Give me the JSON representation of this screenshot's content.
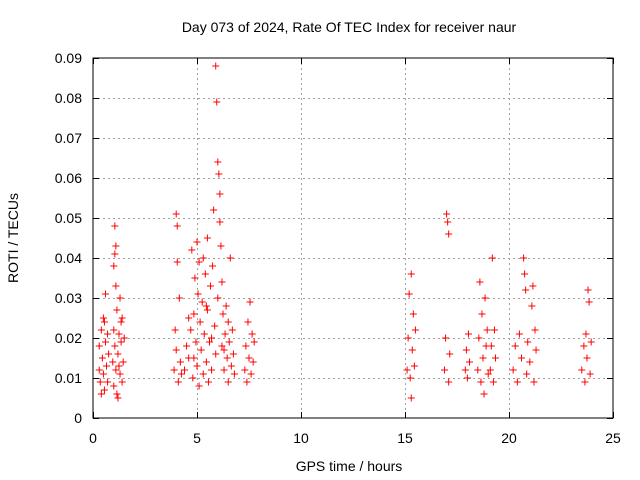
{
  "chart_data": {
    "type": "scatter",
    "title": "Day 073 of 2024, Rate Of TEC Index for receiver naur",
    "xlabel": "GPS time / hours",
    "ylabel": "ROTI / TECUs",
    "xlim": [
      0,
      25
    ],
    "ylim": [
      0,
      0.09
    ],
    "x_ticks": [
      0,
      5,
      10,
      15,
      20,
      25
    ],
    "x_tick_labels": [
      "0",
      "5",
      "10",
      "15",
      "20",
      "25"
    ],
    "y_ticks": [
      0,
      0.01,
      0.02,
      0.03,
      0.04,
      0.05,
      0.06,
      0.07,
      0.08,
      0.09
    ],
    "y_tick_labels": [
      "0",
      "0.01",
      "0.02",
      "0.03",
      "0.04",
      "0.05",
      "0.06",
      "0.07",
      "0.08",
      "0.09"
    ],
    "grid": true,
    "marker": "plus",
    "color": "#ff0000",
    "series": [
      {
        "points": [
          [
            0.3,
            0.012
          ],
          [
            0.3,
            0.018
          ],
          [
            0.35,
            0.009
          ],
          [
            0.4,
            0.022
          ],
          [
            0.45,
            0.015
          ],
          [
            0.5,
            0.011
          ],
          [
            0.5,
            0.025
          ],
          [
            0.55,
            0.007
          ],
          [
            0.6,
            0.019
          ],
          [
            0.65,
            0.013
          ],
          [
            0.7,
            0.021
          ],
          [
            0.7,
            0.009
          ],
          [
            0.75,
            0.016
          ],
          [
            0.4,
            0.006
          ],
          [
            0.6,
            0.031
          ],
          [
            0.55,
            0.024
          ],
          [
            0.95,
            0.014
          ],
          [
            1.0,
            0.022
          ],
          [
            1.0,
            0.008
          ],
          [
            1.05,
            0.018
          ],
          [
            1.05,
            0.048
          ],
          [
            1.1,
            0.033
          ],
          [
            1.1,
            0.012
          ],
          [
            1.15,
            0.027
          ],
          [
            1.2,
            0.016
          ],
          [
            1.2,
            0.005
          ],
          [
            1.25,
            0.021
          ],
          [
            1.3,
            0.011
          ],
          [
            1.3,
            0.03
          ],
          [
            1.35,
            0.019
          ],
          [
            1.4,
            0.009
          ],
          [
            1.4,
            0.025
          ],
          [
            1.45,
            0.014
          ],
          [
            1.5,
            0.02
          ],
          [
            1.0,
            0.038
          ],
          [
            1.05,
            0.041
          ],
          [
            1.1,
            0.043
          ],
          [
            1.15,
            0.006
          ],
          [
            1.25,
            0.013
          ],
          [
            1.35,
            0.024
          ],
          [
            3.9,
            0.012
          ],
          [
            3.95,
            0.022
          ],
          [
            4.0,
            0.051
          ],
          [
            4.0,
            0.017
          ],
          [
            4.05,
            0.048
          ],
          [
            4.1,
            0.009
          ],
          [
            4.15,
            0.03
          ],
          [
            4.2,
            0.014
          ],
          [
            4.05,
            0.039
          ],
          [
            4.25,
            0.011
          ],
          [
            4.4,
            0.012
          ],
          [
            4.5,
            0.018
          ],
          [
            4.6,
            0.015
          ],
          [
            4.7,
            0.022
          ],
          [
            4.75,
            0.042
          ],
          [
            4.8,
            0.01
          ],
          [
            4.85,
            0.026
          ],
          [
            4.9,
            0.035
          ],
          [
            4.95,
            0.019
          ],
          [
            5.0,
            0.044
          ],
          [
            5.0,
            0.013
          ],
          [
            5.05,
            0.031
          ],
          [
            5.1,
            0.039
          ],
          [
            5.1,
            0.008
          ],
          [
            5.15,
            0.024
          ],
          [
            5.2,
            0.017
          ],
          [
            5.25,
            0.029
          ],
          [
            5.3,
            0.011
          ],
          [
            5.35,
            0.021
          ],
          [
            5.4,
            0.036
          ],
          [
            5.45,
            0.014
          ],
          [
            5.5,
            0.045
          ],
          [
            5.5,
            0.027
          ],
          [
            5.55,
            0.009
          ],
          [
            5.6,
            0.019
          ],
          [
            5.65,
            0.033
          ],
          [
            5.7,
            0.012
          ],
          [
            5.75,
            0.038
          ],
          [
            5.8,
            0.052
          ],
          [
            5.85,
            0.023
          ],
          [
            5.9,
            0.016
          ],
          [
            5.9,
            0.088
          ],
          [
            5.95,
            0.079
          ],
          [
            6.0,
            0.064
          ],
          [
            6.05,
            0.061
          ],
          [
            6.1,
            0.056
          ],
          [
            6.1,
            0.049
          ],
          [
            6.15,
            0.043
          ],
          [
            6.2,
            0.034
          ],
          [
            6.2,
            0.018
          ],
          [
            6.25,
            0.026
          ],
          [
            6.3,
            0.012
          ],
          [
            6.35,
            0.021
          ],
          [
            6.4,
            0.028
          ],
          [
            6.45,
            0.015
          ],
          [
            6.5,
            0.009
          ],
          [
            6.55,
            0.019
          ],
          [
            6.6,
            0.04
          ],
          [
            6.65,
            0.013
          ],
          [
            6.7,
            0.022
          ],
          [
            6.75,
            0.016
          ],
          [
            6.8,
            0.011
          ],
          [
            4.6,
            0.025
          ],
          [
            4.85,
            0.015
          ],
          [
            5.3,
            0.04
          ],
          [
            5.45,
            0.028
          ],
          [
            5.7,
            0.02
          ],
          [
            6.0,
            0.03
          ],
          [
            6.3,
            0.017
          ],
          [
            6.5,
            0.024
          ],
          [
            7.3,
            0.012
          ],
          [
            7.35,
            0.018
          ],
          [
            7.4,
            0.009
          ],
          [
            7.45,
            0.024
          ],
          [
            7.5,
            0.015
          ],
          [
            7.55,
            0.029
          ],
          [
            7.6,
            0.011
          ],
          [
            7.65,
            0.021
          ],
          [
            7.7,
            0.014
          ],
          [
            7.75,
            0.019
          ],
          [
            15.1,
            0.012
          ],
          [
            15.15,
            0.02
          ],
          [
            15.2,
            0.031
          ],
          [
            15.25,
            0.01
          ],
          [
            15.3,
            0.036
          ],
          [
            15.3,
            0.005
          ],
          [
            15.35,
            0.017
          ],
          [
            15.4,
            0.026
          ],
          [
            15.45,
            0.013
          ],
          [
            15.5,
            0.022
          ],
          [
            16.9,
            0.012
          ],
          [
            16.95,
            0.02
          ],
          [
            17.0,
            0.051
          ],
          [
            17.05,
            0.049
          ],
          [
            17.1,
            0.046
          ],
          [
            17.1,
            0.009
          ],
          [
            17.15,
            0.016
          ],
          [
            17.9,
            0.012
          ],
          [
            17.95,
            0.017
          ],
          [
            18.0,
            0.01
          ],
          [
            18.05,
            0.021
          ],
          [
            18.1,
            0.014
          ],
          [
            18.5,
            0.012
          ],
          [
            18.55,
            0.02
          ],
          [
            18.6,
            0.034
          ],
          [
            18.65,
            0.009
          ],
          [
            18.7,
            0.026
          ],
          [
            18.75,
            0.015
          ],
          [
            18.8,
            0.006
          ],
          [
            18.85,
            0.03
          ],
          [
            18.9,
            0.018
          ],
          [
            18.95,
            0.022
          ],
          [
            19.0,
            0.011
          ],
          [
            19.1,
            0.012
          ],
          [
            19.15,
            0.018
          ],
          [
            19.2,
            0.04
          ],
          [
            19.25,
            0.009
          ],
          [
            19.3,
            0.022
          ],
          [
            19.35,
            0.015
          ],
          [
            20.2,
            0.012
          ],
          [
            20.3,
            0.018
          ],
          [
            20.4,
            0.009
          ],
          [
            20.5,
            0.021
          ],
          [
            20.6,
            0.015
          ],
          [
            20.7,
            0.04
          ],
          [
            20.75,
            0.036
          ],
          [
            20.8,
            0.032
          ],
          [
            20.85,
            0.011
          ],
          [
            20.9,
            0.019
          ],
          [
            21.0,
            0.014
          ],
          [
            21.1,
            0.028
          ],
          [
            21.15,
            0.033
          ],
          [
            21.2,
            0.009
          ],
          [
            21.25,
            0.022
          ],
          [
            21.3,
            0.017
          ],
          [
            23.5,
            0.012
          ],
          [
            23.6,
            0.018
          ],
          [
            23.65,
            0.009
          ],
          [
            23.7,
            0.021
          ],
          [
            23.75,
            0.015
          ],
          [
            23.8,
            0.032
          ],
          [
            23.85,
            0.029
          ],
          [
            23.9,
            0.011
          ],
          [
            23.95,
            0.019
          ]
        ]
      }
    ]
  }
}
